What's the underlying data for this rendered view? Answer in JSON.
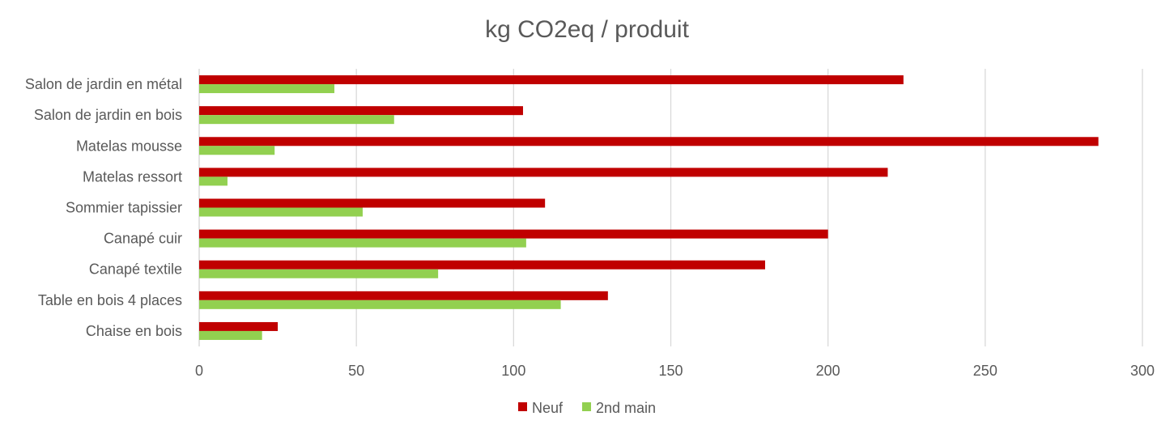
{
  "chart_data": {
    "type": "bar",
    "orientation": "horizontal",
    "title": "kg CO2eq / produit",
    "categories": [
      "Salon de jardin en métal",
      "Salon de jardin en bois",
      "Matelas mousse",
      "Matelas ressort",
      "Sommier tapissier",
      "Canapé cuir",
      "Canapé textile",
      "Table en bois 4 places",
      "Chaise en bois"
    ],
    "series": [
      {
        "name": "Neuf",
        "color": "#C00000",
        "values": [
          224,
          103,
          286,
          219,
          110,
          200,
          180,
          130,
          25
        ]
      },
      {
        "name": "2nd main",
        "color": "#92D050",
        "values": [
          43,
          62,
          24,
          9,
          52,
          104,
          76,
          115,
          20
        ]
      }
    ],
    "xlim": [
      0,
      300
    ],
    "xticks": [
      0,
      50,
      100,
      150,
      200,
      250,
      300
    ],
    "grid": true,
    "legend_position": "bottom"
  }
}
